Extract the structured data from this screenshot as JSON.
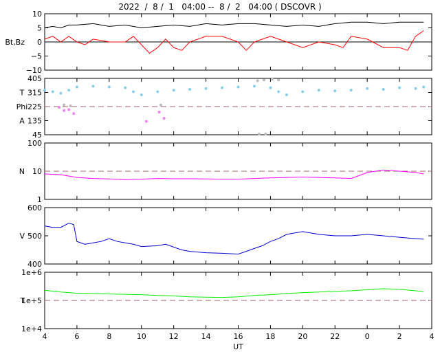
{
  "chart_data": {
    "title": "2022  /  8 /  1   04:00 --  8 /  2   04:00 ( DSCOVR )",
    "xlabel": "UT",
    "x_ticks": [
      "4",
      "6",
      "8",
      "10",
      "12",
      "14",
      "16",
      "18",
      "20",
      "22",
      "0",
      "2",
      "4"
    ],
    "x_range_hours": [
      4,
      28
    ],
    "panels": [
      {
        "id": "bt-bz",
        "type": "line",
        "ylabel": [
          "Bt,Bz"
        ],
        "ylim": [
          -10,
          10
        ],
        "y_ticks": [
          "10",
          "5",
          "0",
          "−5",
          "−10"
        ],
        "reference_line": {
          "y": 0,
          "style": "solid"
        },
        "series": [
          {
            "color": "#000000",
            "x": [
              4,
              4.5,
              5,
              5.5,
              6,
              7,
              8,
              9,
              10,
              11,
              12,
              13,
              14,
              15,
              16,
              17,
              18,
              19,
              20,
              21,
              22,
              23,
              24,
              25,
              26,
              27,
              27.5
            ],
            "y": [
              5,
              5.5,
              5,
              6,
              6,
              6.5,
              5.5,
              6,
              5,
              5.5,
              6,
              5.5,
              6.5,
              6,
              6.5,
              6.5,
              6,
              5.5,
              6,
              5.5,
              6.5,
              7,
              7,
              6.5,
              7,
              7,
              7
            ]
          },
          {
            "color": "#ff0000",
            "x": [
              4,
              4.5,
              5,
              5.5,
              6,
              6.5,
              7,
              8,
              9,
              9.5,
              10,
              10.5,
              11,
              11.5,
              12,
              12.5,
              13,
              14,
              15,
              16,
              16.5,
              17,
              17.5,
              18,
              19,
              20,
              21,
              22,
              22.5,
              23,
              24,
              25,
              26,
              26.5,
              27,
              27.5
            ],
            "y": [
              1,
              2,
              0,
              2,
              0,
              -1,
              1,
              0,
              0,
              2,
              -1,
              -4,
              -2,
              1,
              -2,
              -3,
              0,
              2,
              2,
              0,
              -3,
              0,
              1,
              2,
              0,
              -2,
              0,
              -1,
              -2,
              2,
              1,
              -2,
              -2,
              -3,
              2,
              4
            ]
          }
        ]
      },
      {
        "id": "phi",
        "type": "scatter",
        "ylabel": [
          "T",
          "Phi",
          "A"
        ],
        "ylabel_values": [
          315,
          225,
          135
        ],
        "ylim": [
          45,
          405
        ],
        "y_ticks": [
          "405",
          "315",
          "225",
          "135",
          "45"
        ],
        "reference_line": {
          "y": 225,
          "style": "dashed"
        },
        "series": [
          {
            "color": "#87ceeb",
            "x": [
              4,
              4.5,
              5,
              5.5,
              6,
              7,
              8,
              9,
              9.5,
              10,
              11,
              12,
              13,
              14,
              15,
              16,
              17,
              18,
              18.5,
              19,
              20,
              21,
              22,
              23,
              24,
              25,
              26,
              27,
              27.5
            ],
            "y": [
              330,
              320,
              310,
              330,
              350,
              355,
              350,
              345,
              320,
              300,
              320,
              330,
              335,
              340,
              345,
              350,
              355,
              345,
              320,
              300,
              320,
              330,
              325,
              330,
              340,
              335,
              345,
              340,
              350
            ]
          },
          {
            "color": "#ee82ee",
            "x": [
              4.9,
              5.2,
              5.5,
              5.8,
              10.3,
              11.1,
              11.4
            ],
            "y": [
              220,
              200,
              205,
              180,
              130,
              190,
              150
            ]
          },
          {
            "color": "#bbbbbb",
            "x": [
              5.2,
              5.6,
              11.2,
              17.2,
              17.6,
              18.1,
              18.5,
              17.3,
              17.7
            ],
            "y": [
              235,
              230,
              235,
              390,
              395,
              400,
              395,
              50,
              50
            ]
          }
        ]
      },
      {
        "id": "density",
        "type": "line",
        "ylabel": [
          "N"
        ],
        "yscale": "log",
        "ylim": [
          1,
          100
        ],
        "y_ticks": [
          "100",
          "10",
          "1"
        ],
        "reference_line": {
          "y": 10,
          "style": "dashed"
        },
        "series": [
          {
            "color": "#ff00ff",
            "x": [
              4,
              5,
              6,
              7,
              8,
              9,
              10,
              11,
              12,
              13,
              14,
              15,
              16,
              17,
              18,
              19,
              20,
              21,
              22,
              23,
              23.5,
              24,
              25,
              26,
              27,
              27.5
            ],
            "y": [
              8,
              7.5,
              6,
              5.5,
              5.3,
              5,
              5.2,
              5.5,
              5.4,
              5.4,
              5.3,
              5.2,
              5.2,
              5.5,
              5.8,
              6,
              6.2,
              6,
              5.8,
              5.5,
              7,
              9,
              11,
              10,
              9,
              8
            ]
          }
        ]
      },
      {
        "id": "velocity",
        "type": "line",
        "ylabel": [
          "V"
        ],
        "ylim": [
          400,
          600
        ],
        "y_ticks": [
          "600",
          "500",
          "400"
        ],
        "series": [
          {
            "color": "#0000cc",
            "x": [
              4,
              4.5,
              5,
              5.5,
              5.8,
              6,
              6.5,
              7,
              7.5,
              8,
              8.5,
              9,
              9.5,
              10,
              11,
              11.5,
              12,
              12.5,
              13,
              14,
              15,
              16,
              16.5,
              17,
              17.5,
              18,
              18.5,
              19,
              19.5,
              20,
              21,
              22,
              23,
              24,
              25,
              26,
              27,
              27.5
            ],
            "y": [
              535,
              530,
              530,
              545,
              540,
              480,
              470,
              475,
              480,
              490,
              480,
              475,
              470,
              462,
              465,
              470,
              460,
              450,
              445,
              440,
              438,
              435,
              445,
              455,
              465,
              480,
              490,
              505,
              510,
              515,
              505,
              500,
              500,
              505,
              500,
              495,
              490,
              488
            ]
          }
        ]
      },
      {
        "id": "temperature",
        "type": "line",
        "ylabel": [
          "T"
        ],
        "yscale": "log",
        "ylim": [
          10000,
          1000000
        ],
        "y_ticks": [
          "1e+6",
          "1e+5",
          "1e+4"
        ],
        "reference_line": {
          "y": 100000,
          "style": "dashed"
        },
        "series": [
          {
            "color": "#00ee00",
            "x": [
              4,
              5,
              6,
              7,
              8,
              9,
              10,
              11,
              12,
              13,
              14,
              15,
              16,
              17,
              18,
              19,
              20,
              21,
              22,
              23,
              24,
              25,
              26,
              27,
              27.5
            ],
            "y": [
              230000,
              200000,
              180000,
              175000,
              170000,
              165000,
              160000,
              150000,
              145000,
              135000,
              130000,
              128000,
              135000,
              150000,
              160000,
              175000,
              190000,
              200000,
              210000,
              220000,
              240000,
              260000,
              250000,
              220000,
              210000
            ]
          }
        ]
      }
    ]
  }
}
